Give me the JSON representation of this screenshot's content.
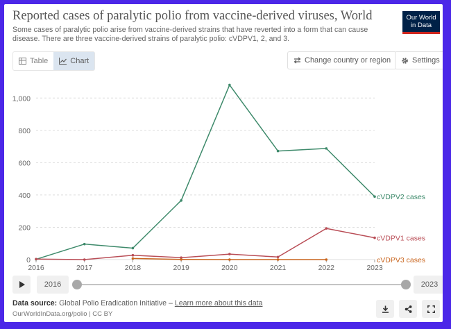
{
  "header": {
    "title": "Reported cases of paralytic polio from vaccine-derived viruses, World",
    "subtitle": "Some cases of paralytic polio arise from vaccine-derived strains that have reverted into a form that can cause disease. There are three vaccine-derived strains of paralytic polio: cVDPV1, 2, and 3.",
    "logo_line1": "Our World",
    "logo_line2": "in Data"
  },
  "toolbar": {
    "table_label": "Table",
    "chart_label": "Chart",
    "change_label": "Change country or region",
    "settings_label": "Settings"
  },
  "timeline": {
    "start_year": "2016",
    "end_year": "2023"
  },
  "footer": {
    "source_label": "Data source:",
    "source_text": "Global Polio Eradication Initiative –",
    "learn_more": "Learn more about this data",
    "url_line": "OurWorldInData.org/polio | CC BY"
  },
  "colors": {
    "cvdpv2": "#3e8a6b",
    "cvdpv1": "#b94d56",
    "cvdpv3": "#c9651e",
    "grid": "#dddddd",
    "axis_text": "#666666"
  },
  "chart_data": {
    "type": "line",
    "title": "Reported cases of paralytic polio from vaccine-derived viruses, World",
    "xlabel": "",
    "ylabel": "",
    "x": [
      2016,
      2017,
      2018,
      2019,
      2020,
      2021,
      2022,
      2023
    ],
    "ylim": [
      0,
      1100
    ],
    "xlim": [
      2016,
      2023
    ],
    "yticks": [
      0,
      200,
      400,
      600,
      800,
      1000
    ],
    "ytick_labels": [
      "0",
      "200",
      "400",
      "600",
      "800",
      "1,000"
    ],
    "xtick_labels": [
      "2016",
      "2017",
      "2018",
      "2019",
      "2020",
      "2021",
      "2022",
      "2023"
    ],
    "grid": true,
    "series": [
      {
        "name": "cVDPV2 cases",
        "color_key": "cvdpv2",
        "x": [
          2016,
          2017,
          2018,
          2019,
          2020,
          2021,
          2022,
          2023
        ],
        "values": [
          2,
          96,
          71,
          366,
          1081,
          672,
          688,
          390
        ]
      },
      {
        "name": "cVDPV1 cases",
        "color_key": "cvdpv1",
        "x": [
          2016,
          2017,
          2018,
          2019,
          2020,
          2021,
          2022,
          2023
        ],
        "values": [
          3,
          0,
          27,
          12,
          34,
          16,
          193,
          135
        ]
      },
      {
        "name": "cVDPV3 cases",
        "color_key": "cvdpv3",
        "x": [
          2018,
          2019,
          2020,
          2021,
          2022
        ],
        "values": [
          7,
          1,
          0,
          0,
          0
        ]
      }
    ]
  }
}
